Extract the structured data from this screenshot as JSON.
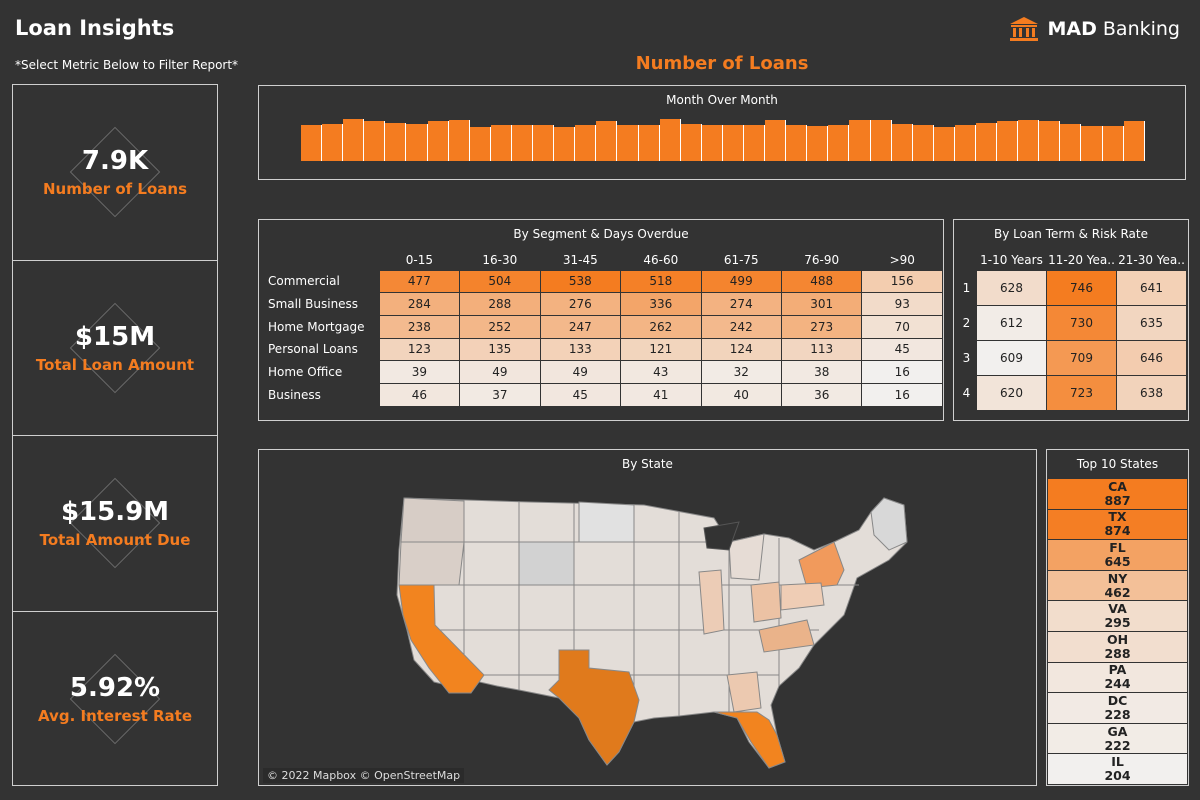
{
  "header": {
    "title": "Loan Insights",
    "filter_hint": "*Select Metric Below to Filter Report*",
    "brand_bold": "MAD",
    "brand_rest": "Banking",
    "section_title": "Number of Loans"
  },
  "colors": {
    "accent": "#f47c20",
    "background": "#333333",
    "heat_low": "#f2f0ee",
    "heat_high": "#f47c20"
  },
  "kpis": [
    {
      "value": "7.9K",
      "label": "Number of Loans"
    },
    {
      "value": "$15M",
      "label": "Total Loan Amount"
    },
    {
      "value": "$15.9M",
      "label": "Total Amount Due"
    },
    {
      "value": "5.92%",
      "label": "Avg. Interest Rate"
    }
  ],
  "month_over_month": {
    "title": "Month Over Month",
    "relative_values": [
      0.8,
      0.82,
      0.93,
      0.9,
      0.85,
      0.82,
      0.9,
      0.91,
      0.76,
      0.79,
      0.8,
      0.8,
      0.76,
      0.81,
      0.89,
      0.81,
      0.79,
      0.94,
      0.82,
      0.8,
      0.81,
      0.81,
      0.91,
      0.81,
      0.77,
      0.8,
      0.91,
      0.91,
      0.82,
      0.8,
      0.76,
      0.8,
      0.85,
      0.88,
      0.91,
      0.88,
      0.82,
      0.78,
      0.77,
      0.9
    ]
  },
  "segment_table": {
    "title": "By Segment & Days Overdue",
    "columns": [
      "0-15",
      "16-30",
      "31-45",
      "46-60",
      "61-75",
      "76-90",
      ">90"
    ],
    "rows": [
      {
        "label": "Commercial",
        "values": [
          477,
          504,
          538,
          518,
          499,
          488,
          156
        ]
      },
      {
        "label": "Small Business",
        "values": [
          284,
          288,
          276,
          336,
          274,
          301,
          93
        ]
      },
      {
        "label": "Home Mortgage",
        "values": [
          238,
          252,
          247,
          262,
          242,
          273,
          70
        ]
      },
      {
        "label": "Personal Loans",
        "values": [
          123,
          135,
          133,
          121,
          124,
          113,
          45
        ]
      },
      {
        "label": "Home Office",
        "values": [
          39,
          49,
          49,
          43,
          32,
          38,
          16
        ]
      },
      {
        "label": "Business",
        "values": [
          46,
          37,
          45,
          41,
          40,
          36,
          16
        ]
      }
    ]
  },
  "term_table": {
    "title": "By Loan Term & Risk Rate",
    "columns": [
      "1-10 Years",
      "11-20 Yea..",
      "21-30 Yea.."
    ],
    "rows": [
      {
        "label": "1",
        "values": [
          628,
          746,
          641
        ]
      },
      {
        "label": "2",
        "values": [
          612,
          730,
          635
        ]
      },
      {
        "label": "3",
        "values": [
          609,
          709,
          646
        ]
      },
      {
        "label": "4",
        "values": [
          620,
          723,
          638
        ]
      }
    ]
  },
  "state_map": {
    "title": "By State",
    "credit": "© 2022 Mapbox © OpenStreetMap"
  },
  "top_states": {
    "title": "Top 10 States",
    "items": [
      {
        "state": "CA",
        "value": 887
      },
      {
        "state": "TX",
        "value": 874
      },
      {
        "state": "FL",
        "value": 645
      },
      {
        "state": "NY",
        "value": 462
      },
      {
        "state": "VA",
        "value": 295
      },
      {
        "state": "OH",
        "value": 288
      },
      {
        "state": "PA",
        "value": 244
      },
      {
        "state": "DC",
        "value": 228
      },
      {
        "state": "GA",
        "value": 222
      },
      {
        "state": "IL",
        "value": 204
      }
    ]
  }
}
